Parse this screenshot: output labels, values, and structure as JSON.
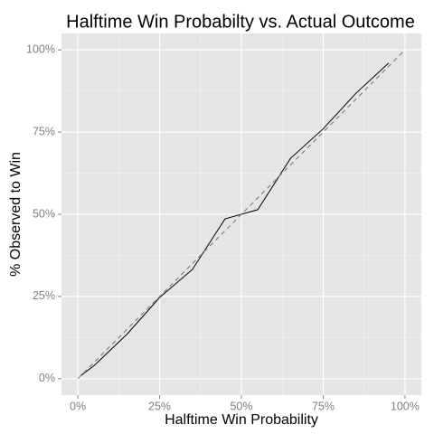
{
  "chart_data": {
    "type": "line",
    "title": "Halftime Win Probabilty vs. Actual Outcome",
    "x_label": "Halftime Win Probability",
    "y_label": "% Observed to Win",
    "series": [
      {
        "color": "#000000",
        "dash": false,
        "x": [
          1,
          5,
          15,
          25,
          35,
          45,
          55,
          65,
          75,
          85,
          95
        ],
        "values": [
          1,
          4,
          13.5,
          24.7,
          33.2,
          48.6,
          51.4,
          67,
          76,
          86.8,
          96
        ]
      },
      {
        "color": "#8c8c8c",
        "dash": true,
        "x": [
          0,
          100
        ],
        "values": [
          0,
          100
        ]
      }
    ],
    "xlim": [
      -5,
      105
    ],
    "ylim": [
      -5,
      105
    ],
    "xticks": [
      {
        "value": 0,
        "label": "0%"
      },
      {
        "value": 25,
        "label": "25%"
      },
      {
        "value": 50,
        "label": "50%"
      },
      {
        "value": 75,
        "label": "75%"
      },
      {
        "value": 100,
        "label": "100%"
      }
    ],
    "yticks": [
      {
        "value": 0,
        "label": "0%"
      },
      {
        "value": 25,
        "label": "25%"
      },
      {
        "value": 50,
        "label": "50%"
      },
      {
        "value": 75,
        "label": "75%"
      },
      {
        "value": 100,
        "label": "100%"
      }
    ],
    "grid": true
  }
}
